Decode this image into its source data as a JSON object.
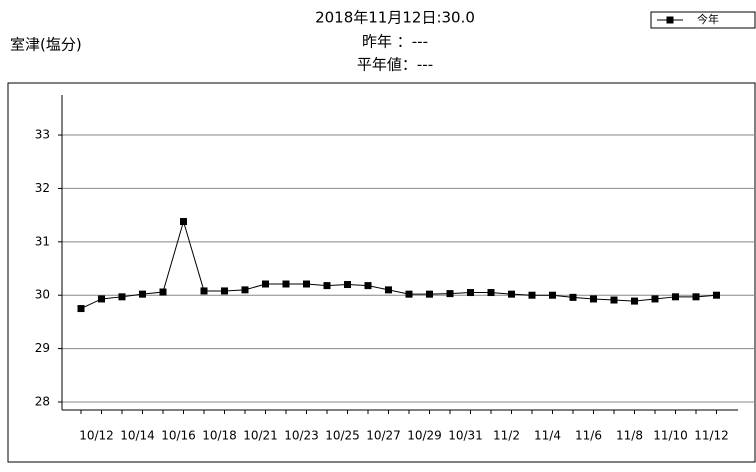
{
  "chart_data": {
    "type": "line",
    "station_label": "室津(塩分)",
    "title": "2018年11月12日:30.0",
    "subtitle": [
      "昨年 ：---",
      "平年値：---"
    ],
    "categories": [
      null,
      "10/12",
      null,
      "10/14",
      null,
      "10/16",
      null,
      "10/18",
      null,
      "10/21",
      null,
      "10/23",
      null,
      "10/25",
      null,
      "10/27",
      null,
      "10/29",
      null,
      "10/31",
      null,
      "11/2",
      null,
      "11/4",
      null,
      "11/6",
      null,
      "11/8",
      null,
      "11/10",
      null,
      "11/12"
    ],
    "series": [
      {
        "name": "今年",
        "color": "#000000",
        "values": [
          29.75,
          29.93,
          29.97,
          30.02,
          30.06,
          31.38,
          30.08,
          30.08,
          30.1,
          30.21,
          30.21,
          30.21,
          30.18,
          30.2,
          30.18,
          30.1,
          30.02,
          30.02,
          30.03,
          30.05,
          30.05,
          30.02,
          30.0,
          30.0,
          29.96,
          29.93,
          29.91,
          29.89,
          29.93,
          29.97,
          29.97,
          30.0
        ]
      }
    ],
    "ylim": [
      27.85,
      33.75
    ],
    "yticks": [
      28,
      29,
      30,
      31,
      32,
      33
    ],
    "grid": true,
    "legend": "top-right"
  }
}
